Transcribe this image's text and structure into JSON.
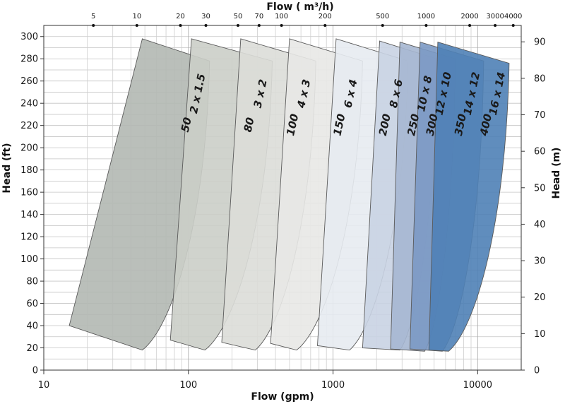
{
  "chart_data": {
    "type": "area",
    "x_scale": "log",
    "xlabel_bottom": "Flow (gpm)",
    "xlabel_top": "Flow ( m³/h)",
    "ylabel_left": "Head (ft)",
    "ylabel_right": "Head (m)",
    "xlim_gpm": [
      10,
      20000
    ],
    "ylim_ft": [
      0,
      310
    ],
    "ylim_m": [
      0,
      94.5
    ],
    "grid": true,
    "bottom_ticks": [
      {
        "value": 10,
        "label": "10"
      },
      {
        "value": 100,
        "label": "100"
      },
      {
        "value": 1000,
        "label": "1000"
      },
      {
        "value": 10000,
        "label": "10000"
      }
    ],
    "left_ticks": [
      {
        "value": 0,
        "label": "0"
      },
      {
        "value": 20,
        "label": "20"
      },
      {
        "value": 40,
        "label": "40"
      },
      {
        "value": 60,
        "label": "60"
      },
      {
        "value": 80,
        "label": "80"
      },
      {
        "value": 100,
        "label": "100"
      },
      {
        "value": 120,
        "label": "120"
      },
      {
        "value": 140,
        "label": "140"
      },
      {
        "value": 160,
        "label": "160"
      },
      {
        "value": 180,
        "label": "180"
      },
      {
        "value": 200,
        "label": "200"
      },
      {
        "value": 220,
        "label": "220"
      },
      {
        "value": 240,
        "label": "240"
      },
      {
        "value": 260,
        "label": "260"
      },
      {
        "value": 280,
        "label": "280"
      },
      {
        "value": 300,
        "label": "300"
      }
    ],
    "right_ticks": [
      {
        "value": 0,
        "label": "0"
      },
      {
        "value": 10,
        "label": "10"
      },
      {
        "value": 20,
        "label": "20"
      },
      {
        "value": 30,
        "label": "30"
      },
      {
        "value": 40,
        "label": "40"
      },
      {
        "value": 50,
        "label": "50"
      },
      {
        "value": 60,
        "label": "60"
      },
      {
        "value": 70,
        "label": "70"
      },
      {
        "value": 80,
        "label": "80"
      },
      {
        "value": 90,
        "label": "90"
      }
    ],
    "top_ticks": [
      {
        "value": 5,
        "label": "5"
      },
      {
        "value": 10,
        "label": "10"
      },
      {
        "value": 20,
        "label": "20"
      },
      {
        "value": 30,
        "label": "30"
      },
      {
        "value": 50,
        "label": "50"
      },
      {
        "value": 70,
        "label": "70"
      },
      {
        "value": 100,
        "label": "100"
      },
      {
        "value": 200,
        "label": "200"
      },
      {
        "value": 500,
        "label": "500"
      },
      {
        "value": 1000,
        "label": "1000"
      },
      {
        "value": 2000,
        "label": "2000"
      },
      {
        "value": 3000,
        "label": "3000"
      },
      {
        "value": 4000,
        "label": "4000"
      }
    ],
    "series": [
      {
        "name": "2 x 1.5",
        "hz_label": "50",
        "color": "#b3b8b2",
        "top_left": [
          48,
          298
        ],
        "top_right": [
          140,
          278
        ],
        "bottom_left": [
          15,
          40
        ],
        "bottom_right": [
          48,
          18
        ]
      },
      {
        "name": "3 x 2",
        "hz_label": "80",
        "color": "#cbcec8",
        "top_left": [
          105,
          298
        ],
        "top_right": [
          380,
          278
        ],
        "bottom_left": [
          75,
          27
        ],
        "bottom_right": [
          130,
          18
        ]
      },
      {
        "name": "4 x 3",
        "hz_label": "100",
        "color": "#dcddd8",
        "top_left": [
          230,
          298
        ],
        "top_right": [
          760,
          278
        ],
        "bottom_left": [
          170,
          25
        ],
        "bottom_right": [
          290,
          18
        ]
      },
      {
        "name": "6 x 4",
        "hz_label": "150",
        "color": "#e8e8e6",
        "top_left": [
          500,
          298
        ],
        "top_right": [
          1600,
          278
        ],
        "bottom_left": [
          370,
          24
        ],
        "bottom_right": [
          560,
          18
        ]
      },
      {
        "name": "8 x 6",
        "hz_label": "200",
        "color": "#e7ebf1",
        "top_left": [
          1050,
          298
        ],
        "top_right": [
          3300,
          278
        ],
        "bottom_left": [
          780,
          22
        ],
        "bottom_right": [
          1300,
          18
        ]
      },
      {
        "name": "10 x 8",
        "hz_label": "250",
        "color": "#c9d3e3",
        "top_left": [
          2100,
          296
        ],
        "top_right": [
          5200,
          280
        ],
        "bottom_left": [
          1600,
          20
        ],
        "bottom_right": [
          2900,
          18
        ]
      },
      {
        "name": "12 x 10",
        "hz_label": "300",
        "color": "#a6b7d1",
        "top_left": [
          2900,
          295
        ],
        "top_right": [
          7000,
          280
        ],
        "bottom_left": [
          2500,
          19
        ],
        "bottom_right": [
          4300,
          17
        ]
      },
      {
        "name": "14 x 12",
        "hz_label": "350",
        "color": "#7b99c4",
        "top_left": [
          4000,
          295
        ],
        "top_right": [
          11000,
          278
        ],
        "bottom_left": [
          3400,
          19
        ],
        "bottom_right": [
          5700,
          17
        ]
      },
      {
        "name": "16 x 14",
        "hz_label": "400",
        "color": "#4f81b6",
        "top_left": [
          5300,
          295
        ],
        "top_right": [
          16500,
          276
        ],
        "bottom_left": [
          4600,
          18
        ],
        "bottom_right": [
          6300,
          17
        ]
      }
    ]
  }
}
